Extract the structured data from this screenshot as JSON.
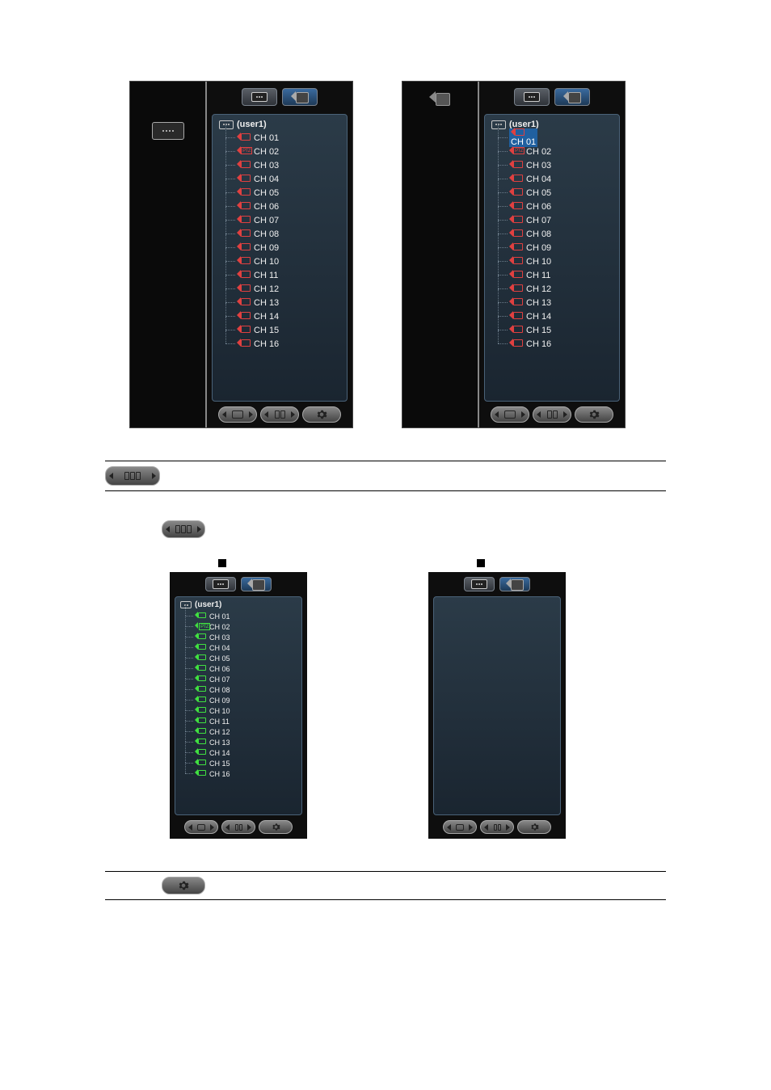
{
  "standalone_pills": {
    "p1": "",
    "p2": "",
    "p3": ""
  },
  "panels_top": [
    {
      "side_icon": "device",
      "active_tab": 0,
      "root_label": "(user1)",
      "selected_index": -1,
      "icon_color": "red",
      "channels": [
        {
          "label": "CH 01",
          "ptz": false
        },
        {
          "label": "CH 02",
          "ptz": true
        },
        {
          "label": "CH 03",
          "ptz": false
        },
        {
          "label": "CH 04",
          "ptz": false
        },
        {
          "label": "CH 05",
          "ptz": false
        },
        {
          "label": "CH 06",
          "ptz": false
        },
        {
          "label": "CH 07",
          "ptz": false
        },
        {
          "label": "CH 08",
          "ptz": false
        },
        {
          "label": "CH 09",
          "ptz": false
        },
        {
          "label": "CH 10",
          "ptz": false
        },
        {
          "label": "CH 11",
          "ptz": false
        },
        {
          "label": "CH 12",
          "ptz": false
        },
        {
          "label": "CH 13",
          "ptz": false
        },
        {
          "label": "CH 14",
          "ptz": false
        },
        {
          "label": "CH 15",
          "ptz": false
        },
        {
          "label": "CH 16",
          "ptz": false
        }
      ]
    },
    {
      "side_icon": "camera",
      "active_tab": 0,
      "root_label": "(user1)",
      "selected_index": 0,
      "icon_color": "red",
      "channels": [
        {
          "label": "CH 01",
          "ptz": false
        },
        {
          "label": "CH 02",
          "ptz": true
        },
        {
          "label": "CH 03",
          "ptz": false
        },
        {
          "label": "CH 04",
          "ptz": false
        },
        {
          "label": "CH 05",
          "ptz": false
        },
        {
          "label": "CH 06",
          "ptz": false
        },
        {
          "label": "CH 07",
          "ptz": false
        },
        {
          "label": "CH 08",
          "ptz": false
        },
        {
          "label": "CH 09",
          "ptz": false
        },
        {
          "label": "CH 10",
          "ptz": false
        },
        {
          "label": "CH 11",
          "ptz": false
        },
        {
          "label": "CH 12",
          "ptz": false
        },
        {
          "label": "CH 13",
          "ptz": false
        },
        {
          "label": "CH 14",
          "ptz": false
        },
        {
          "label": "CH 15",
          "ptz": false
        },
        {
          "label": "CH 16",
          "ptz": false
        }
      ]
    }
  ],
  "panels_bottom": [
    {
      "active_tab": 0,
      "root_label": "(user1)",
      "icon_color": "green",
      "channels": [
        {
          "label": "CH 01",
          "ptz": false
        },
        {
          "label": "CH 02",
          "ptz": true
        },
        {
          "label": "CH 03",
          "ptz": false
        },
        {
          "label": "CH 04",
          "ptz": false
        },
        {
          "label": "CH 05",
          "ptz": false
        },
        {
          "label": "CH 06",
          "ptz": false
        },
        {
          "label": "CH 07",
          "ptz": false
        },
        {
          "label": "CH 08",
          "ptz": false
        },
        {
          "label": "CH 09",
          "ptz": false
        },
        {
          "label": "CH 10",
          "ptz": false
        },
        {
          "label": "CH 11",
          "ptz": false
        },
        {
          "label": "CH 12",
          "ptz": false
        },
        {
          "label": "CH 13",
          "ptz": false
        },
        {
          "label": "CH 14",
          "ptz": false
        },
        {
          "label": "CH 15",
          "ptz": false
        },
        {
          "label": "CH 16",
          "ptz": false
        }
      ]
    },
    {
      "active_tab": 0,
      "root_label": "",
      "icon_color": "",
      "channels": []
    }
  ],
  "colors": {
    "bg": "#ffffff",
    "panel_bg": "#0e0e0e",
    "tree_bg_top": "#2b3b48",
    "tree_bg_bottom": "#1a2530",
    "red": "#e04040",
    "green": "#40e040",
    "selection": "#2060a0"
  }
}
